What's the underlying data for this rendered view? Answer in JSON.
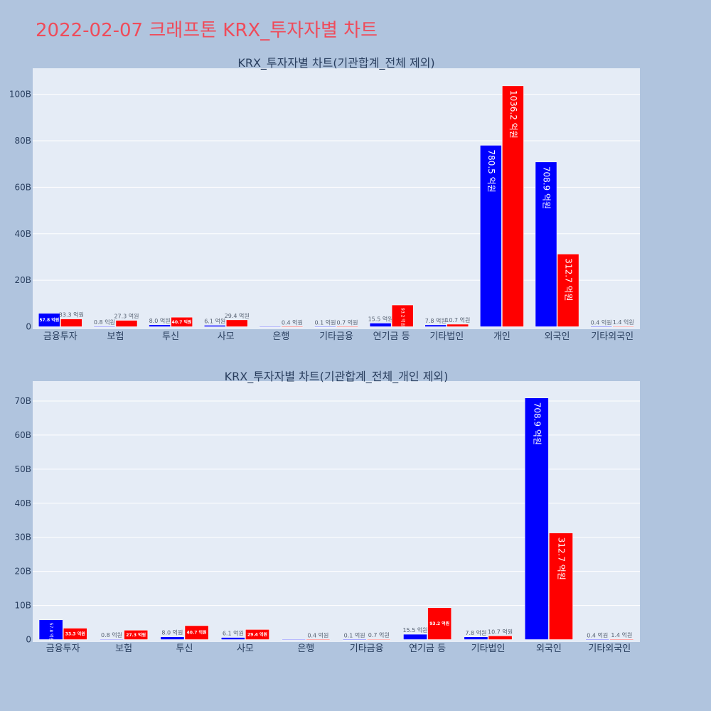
{
  "page": {
    "title": "2022-02-07 크래프톤 KRX_투자자별 차트",
    "background": "#b0c4de",
    "title_color": "#ef4b5a"
  },
  "colors": {
    "series_buy": "#0000ff",
    "series_sell": "#ff0000",
    "plot_bg": "#e5ecf6",
    "grid": "#ffffff",
    "text": "#2a3f5f"
  },
  "chart_data": [
    {
      "type": "bar",
      "title": "KRX_투자자별 차트(기관합계_전체 제외)",
      "categories": [
        "금융투자",
        "보험",
        "투신",
        "사모",
        "은행",
        "기타금융",
        "연기금 등",
        "기타법인",
        "개인",
        "외국인",
        "기타외국인"
      ],
      "series": [
        {
          "values": [
            5.78,
            0.08,
            0.8,
            0.61,
            0.0,
            0.01,
            1.55,
            0.78,
            78.05,
            70.89,
            0.04
          ],
          "labels": [
            "57.8 억원",
            "0.8 억원",
            "8.0 억원",
            "6.1 억원",
            "",
            "0.1 억원",
            "15.5 억원",
            "7.8 억원",
            "780.5 억원",
            "708.9 억원",
            "0.4 억원"
          ]
        },
        {
          "values": [
            3.33,
            2.73,
            4.07,
            2.94,
            0.04,
            0.07,
            9.32,
            1.07,
            103.62,
            31.27,
            0.14
          ],
          "labels": [
            "33.3 억원",
            "27.3 억원",
            "40.7 억원",
            "29.4 억원",
            "0.4 억원",
            "0.7 억원",
            "93.2 억원",
            "10.7 억원",
            "1036.2 억원",
            "312.7 억원",
            "1.4 억원"
          ]
        }
      ],
      "ylim": [
        0,
        110
      ],
      "yticks": [
        0,
        20,
        40,
        60,
        80,
        100
      ],
      "ytick_labels": [
        "0",
        "20B",
        "40B",
        "60B",
        "80B",
        "100B"
      ],
      "grid": true,
      "xlabel": "",
      "ylabel": ""
    },
    {
      "type": "bar",
      "title": "KRX_투자자별 차트(기관합계_전체_개인 제외)",
      "categories": [
        "금융투자",
        "보험",
        "투신",
        "사모",
        "은행",
        "기타금융",
        "연기금 등",
        "기타법인",
        "외국인",
        "기타외국인"
      ],
      "series": [
        {
          "values": [
            5.78,
            0.08,
            0.8,
            0.61,
            0.0,
            0.01,
            1.55,
            0.78,
            70.89,
            0.04
          ],
          "labels": [
            "57.8 억원",
            "0.8 억원",
            "8.0 억원",
            "6.1 억원",
            "",
            "0.1 억원",
            "15.5 억원",
            "7.8 억원",
            "708.9 억원",
            "0.4 억원"
          ]
        },
        {
          "values": [
            3.33,
            2.73,
            4.07,
            2.94,
            0.04,
            0.07,
            9.32,
            1.07,
            31.27,
            0.14
          ],
          "labels": [
            "33.3 억원",
            "27.3 억원",
            "40.7 억원",
            "29.4 억원",
            "0.4 억원",
            "0.7 억원",
            "93.2 억원",
            "10.7 억원",
            "312.7 억원",
            "1.4 억원"
          ]
        }
      ],
      "ylim": [
        0,
        75
      ],
      "yticks": [
        0,
        10,
        20,
        30,
        40,
        50,
        60,
        70
      ],
      "ytick_labels": [
        "0",
        "10B",
        "20B",
        "30B",
        "40B",
        "50B",
        "60B",
        "70B"
      ],
      "grid": true,
      "xlabel": "",
      "ylabel": ""
    }
  ]
}
